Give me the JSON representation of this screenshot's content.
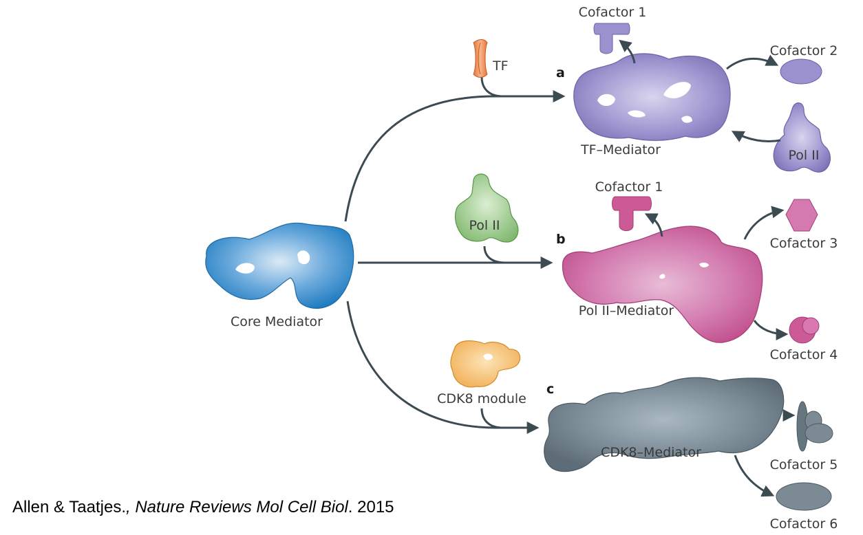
{
  "core": {
    "label": "Core Mediator"
  },
  "pathways": [
    {
      "panel": "a",
      "input": "TF",
      "complex": "TF–Mediator",
      "partners": [
        "Cofactor 1",
        "Cofactor 2",
        "Pol II"
      ]
    },
    {
      "panel": "b",
      "input": "Pol II",
      "complex": "Pol II–Mediator",
      "partners": [
        "Cofactor 1",
        "Cofactor 3",
        "Cofactor 4"
      ]
    },
    {
      "panel": "c",
      "input": "CDK8 module",
      "complex": "CDK8–Mediator",
      "partners": [
        "Cofactor 5",
        "Cofactor 6"
      ]
    }
  ],
  "citation": {
    "authors": "Allen & Taatjes.",
    "sep": ", ",
    "journal": "Nature Reviews Mol Cell Biol",
    "year": ". 2015"
  },
  "colors": {
    "core": "#2a86c8",
    "tf_mediator": "#8c82c2",
    "pol2_mediator": "#cc5a96",
    "cdk8_mediator": "#6b7b86",
    "tf": "#ef8a4e",
    "pol2_input": "#7fb86e",
    "cdk8_module": "#f2b25a",
    "arrow": "#3c4a52"
  }
}
